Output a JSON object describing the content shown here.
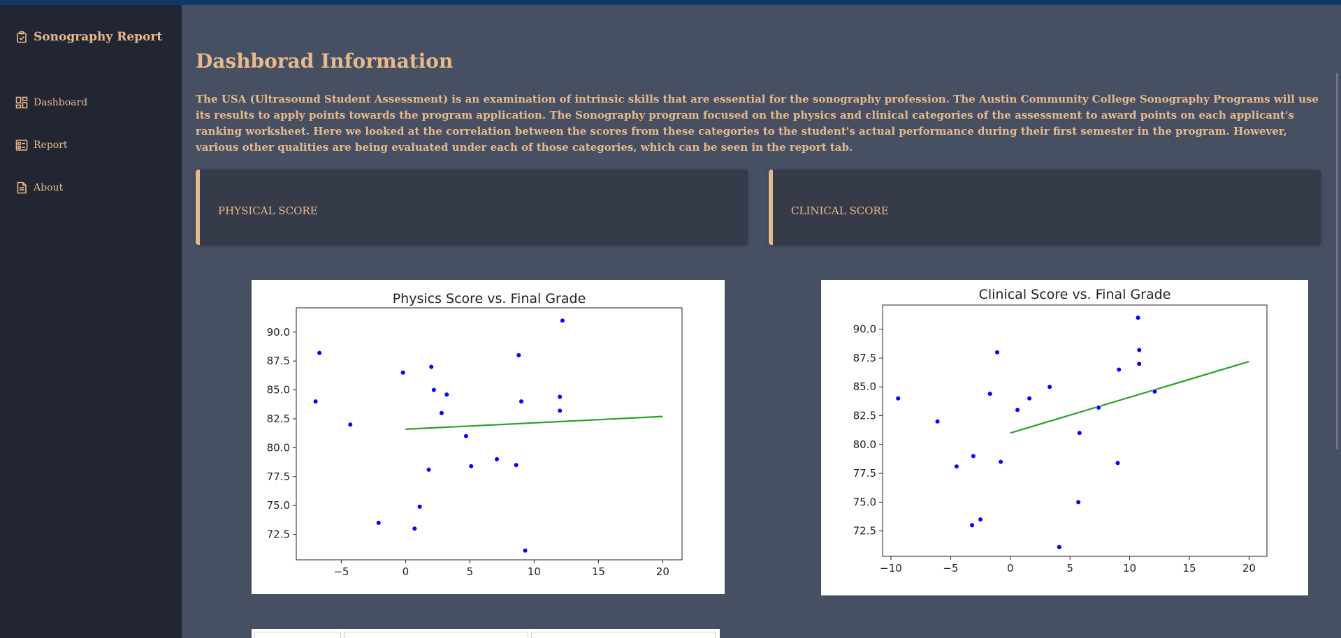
{
  "sidebar": {
    "brand": {
      "icon": "clipboard-check-icon",
      "title": "Sonography Report"
    },
    "items": [
      {
        "icon": "dashboard-icon",
        "label": "Dashboard"
      },
      {
        "icon": "report-icon",
        "label": "Report"
      },
      {
        "icon": "document-icon",
        "label": "About"
      }
    ]
  },
  "main": {
    "title": "Dashborad Information",
    "intro": "The USA (Ultrasound Student Assessment) is an examination of intrinsic skills that are essential for the sonography profession. The Austin Community College Sonography Programs will use its results to apply points towards the program application. The Sonography program focused on the physics and clinical categories of the assessment to award points on each applicant's ranking worksheet. Here we looked at the correlation between the scores from these categories to the student's actual performance during their first semester in the program. However, various other qualities are being evaluated under each of those categories, which can be seen in the report tab.",
    "cards": [
      {
        "label": "PHYSICAL SCORE"
      },
      {
        "label": "CLINICAL SCORE"
      }
    ]
  },
  "colors": {
    "accent": "#e8b98a",
    "point": "#0000ff",
    "trend": "#2ca02c"
  },
  "chart_data": [
    {
      "type": "scatter",
      "title": "Physics Score vs. Final Grade",
      "xlim": [
        -8.5,
        21.5
      ],
      "ylim": [
        70.3,
        92.1
      ],
      "xticks": [
        -5,
        0,
        5,
        10,
        15,
        20
      ],
      "yticks": [
        72.5,
        75.0,
        77.5,
        80.0,
        82.5,
        85.0,
        87.5,
        90.0
      ],
      "points": [
        {
          "x": -6.7,
          "y": 88.2
        },
        {
          "x": -7.0,
          "y": 84.0
        },
        {
          "x": -4.3,
          "y": 82.0
        },
        {
          "x": -2.1,
          "y": 73.5
        },
        {
          "x": -0.2,
          "y": 86.5
        },
        {
          "x": 0.7,
          "y": 73.0
        },
        {
          "x": 1.1,
          "y": 74.9
        },
        {
          "x": 1.8,
          "y": 78.1
        },
        {
          "x": 2.0,
          "y": 87.0
        },
        {
          "x": 2.2,
          "y": 85.0
        },
        {
          "x": 2.8,
          "y": 83.0
        },
        {
          "x": 3.2,
          "y": 84.6
        },
        {
          "x": 4.7,
          "y": 81.0
        },
        {
          "x": 5.1,
          "y": 78.4
        },
        {
          "x": 7.1,
          "y": 79.0
        },
        {
          "x": 8.6,
          "y": 78.5
        },
        {
          "x": 8.8,
          "y": 88.0
        },
        {
          "x": 9.0,
          "y": 84.0
        },
        {
          "x": 9.3,
          "y": 71.1
        },
        {
          "x": 12.0,
          "y": 84.4
        },
        {
          "x": 12.0,
          "y": 83.2
        },
        {
          "x": 12.2,
          "y": 91.0
        }
      ],
      "trendline": [
        {
          "x": 0,
          "y": 81.6
        },
        {
          "x": 20,
          "y": 82.7
        }
      ]
    },
    {
      "type": "scatter",
      "title": "Clinical Score vs. Final Grade",
      "xlim": [
        -10.7,
        21.5
      ],
      "ylim": [
        70.3,
        92.1
      ],
      "xticks": [
        -10,
        -5,
        0,
        5,
        10,
        15,
        20
      ],
      "yticks": [
        72.5,
        75.0,
        77.5,
        80.0,
        82.5,
        85.0,
        87.5,
        90.0
      ],
      "points": [
        {
          "x": -9.4,
          "y": 84.0
        },
        {
          "x": -6.1,
          "y": 82.0
        },
        {
          "x": -4.5,
          "y": 78.1
        },
        {
          "x": -3.2,
          "y": 73.0
        },
        {
          "x": -3.1,
          "y": 79.0
        },
        {
          "x": -2.5,
          "y": 73.5
        },
        {
          "x": -1.7,
          "y": 84.4
        },
        {
          "x": -1.1,
          "y": 88.0
        },
        {
          "x": -0.8,
          "y": 78.5
        },
        {
          "x": 0.6,
          "y": 83.0
        },
        {
          "x": 1.6,
          "y": 84.0
        },
        {
          "x": 3.3,
          "y": 85.0
        },
        {
          "x": 4.1,
          "y": 71.1
        },
        {
          "x": 5.7,
          "y": 75.0
        },
        {
          "x": 5.8,
          "y": 81.0
        },
        {
          "x": 7.4,
          "y": 83.2
        },
        {
          "x": 9.0,
          "y": 78.4
        },
        {
          "x": 9.1,
          "y": 86.5
        },
        {
          "x": 10.7,
          "y": 91.0
        },
        {
          "x": 10.8,
          "y": 88.2
        },
        {
          "x": 10.8,
          "y": 87.0
        },
        {
          "x": 12.1,
          "y": 84.6
        }
      ],
      "trendline": [
        {
          "x": 0,
          "y": 81.0
        },
        {
          "x": 20,
          "y": 87.2
        }
      ]
    }
  ]
}
